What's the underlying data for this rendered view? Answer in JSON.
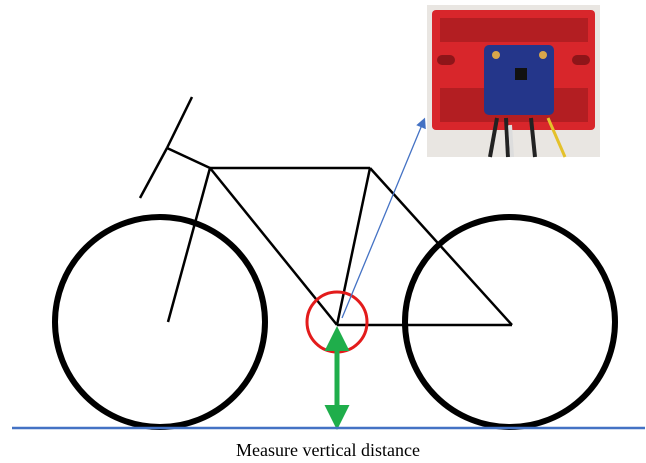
{
  "caption": "Measure vertical distance"
}
